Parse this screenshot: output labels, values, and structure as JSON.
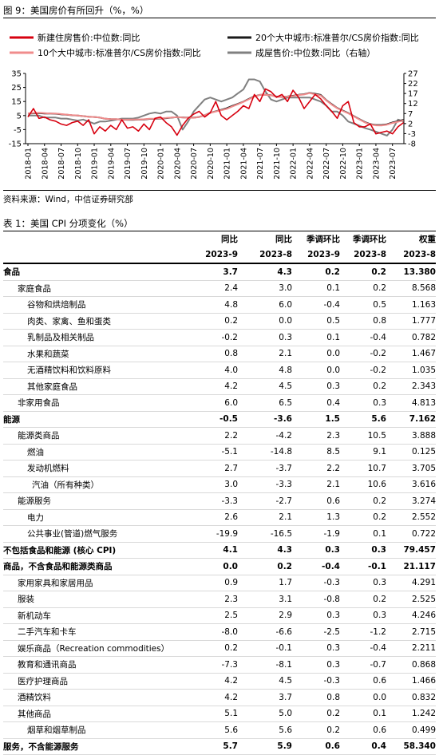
{
  "figure_title": "图 9：美国房价有所回升（%，%）",
  "chart_data": {
    "type": "line",
    "categories": [
      "2018-01",
      null,
      null,
      "2018-04",
      null,
      null,
      "2018-07",
      null,
      null,
      "2018-10",
      null,
      null,
      "2019-01",
      null,
      null,
      "2019-04",
      null,
      null,
      "2019-07",
      null,
      null,
      "2019-10",
      null,
      null,
      "2020-01",
      null,
      null,
      "2020-04",
      null,
      null,
      "2020-07",
      null,
      null,
      "2020-10",
      null,
      null,
      "2021-01",
      null,
      null,
      "2021-04",
      null,
      null,
      "2021-07",
      null,
      null,
      "2021-10",
      null,
      null,
      "2022-01",
      null,
      null,
      "2022-04",
      null,
      null,
      "2022-07",
      null,
      null,
      "2022-10",
      null,
      null,
      "2023-01",
      null,
      null,
      "2023-04",
      null,
      null,
      "2023-07",
      null,
      null
    ],
    "series": [
      {
        "name": "新建住房售价:中位数:同比",
        "color": "#d7000f",
        "values": [
          4,
          10,
          3,
          4,
          2,
          1,
          -1,
          -2,
          0,
          1,
          -2,
          2,
          -8,
          -3,
          -6,
          -2,
          -5,
          2,
          -4,
          -3,
          -6,
          -1,
          -5,
          3,
          4,
          0,
          -3,
          -9,
          -2,
          3,
          6,
          8,
          4,
          7,
          15,
          5,
          2,
          5,
          8,
          12,
          10,
          20,
          15,
          24,
          22,
          18,
          20,
          15,
          23,
          18,
          10,
          15,
          20,
          17,
          12,
          8,
          3,
          12,
          15,
          0,
          -3,
          -3,
          -1,
          -8,
          -7,
          -6,
          -8,
          -3,
          0
        ]
      },
      {
        "name": "20个大中城市:标准普尔/CS房价指数:同比",
        "color": "#1a1a1a",
        "values": [
          6.4,
          6.6,
          6.7,
          6.5,
          6.4,
          6.3,
          5.9,
          5.6,
          5.2,
          5.0,
          4.6,
          4.2,
          4.0,
          3.6,
          2.7,
          2.5,
          2.4,
          2.1,
          2.0,
          2.0,
          2.1,
          2.2,
          2.6,
          2.6,
          2.9,
          3.1,
          3.5,
          3.9,
          3.7,
          3.5,
          3.5,
          4.0,
          5.2,
          7.0,
          8.0,
          9.1,
          10.2,
          11.9,
          13.3,
          14.9,
          16.9,
          18.7,
          19.7,
          19.9,
          19.5,
          18.5,
          18.2,
          18.6,
          19.1,
          19.8,
          20.2,
          21.2,
          20.5,
          19.7,
          16.0,
          13.1,
          10.4,
          8.6,
          6.8,
          4.6,
          2.5,
          0.4,
          -1.1,
          -1.7,
          -1.7,
          -1.2,
          0.1,
          1.0,
          2.0
        ]
      },
      {
        "name": "10个大中城市:标准普尔/CS房价指数:同比",
        "color": "#f08c8c",
        "values": [
          6.6,
          6.8,
          7.0,
          6.7,
          6.5,
          6.4,
          6.1,
          5.7,
          5.3,
          5.1,
          4.6,
          4.2,
          4.0,
          3.6,
          2.8,
          2.5,
          2.5,
          2.2,
          2.1,
          2.2,
          2.2,
          2.4,
          2.7,
          2.8,
          3.1,
          3.3,
          3.6,
          3.9,
          3.6,
          3.4,
          3.4,
          4.0,
          5.2,
          6.9,
          7.9,
          8.8,
          9.8,
          11.5,
          13.0,
          14.7,
          16.6,
          18.5,
          19.7,
          19.8,
          19.4,
          18.4,
          18.1,
          18.5,
          18.8,
          19.6,
          20.0,
          21.0,
          20.1,
          19.3,
          15.8,
          12.8,
          10.2,
          8.3,
          6.6,
          4.4,
          2.3,
          0.1,
          -1.3,
          -2.0,
          -2.1,
          -1.5,
          -0.3,
          0.6,
          1.5
        ]
      },
      {
        "name": "成屋售价:中位数:同比（右轴）",
        "color": "#808080",
        "axis": "y2",
        "values": [
          6,
          6,
          6,
          5,
          5,
          5,
          4.5,
          4.5,
          4,
          3.5,
          4,
          3,
          2,
          3,
          3,
          3.5,
          4,
          4.5,
          4.5,
          4.5,
          5,
          6,
          7,
          7.5,
          7,
          8,
          8,
          6,
          -1,
          3,
          8,
          11,
          14,
          15,
          14,
          13,
          14,
          15,
          17,
          19,
          24,
          24,
          23,
          18,
          14,
          13,
          14,
          15,
          15,
          15,
          15,
          15,
          14,
          13,
          11,
          8,
          8,
          6,
          3,
          2,
          1,
          -0.2,
          -1,
          -2,
          -3,
          -4,
          -1,
          4,
          3
        ]
      }
    ],
    "ylim": [
      -15,
      35
    ],
    "yticks": [
      -15,
      -5,
      5,
      15,
      25,
      35
    ],
    "y2lim": [
      -8,
      27
    ],
    "y2ticks": [
      -8,
      -3,
      2,
      7,
      12,
      17,
      22,
      27
    ]
  },
  "source": "资料来源：Wind，中信证券研究部",
  "table_title": "表 1：美国 CPI 分项变化（%）",
  "table": {
    "header": [
      [
        "同比",
        "同比",
        "季调环比",
        "季调环比",
        "权重"
      ],
      [
        "2023-9",
        "2023-8",
        "2023-9",
        "2023-8",
        "2023-8"
      ]
    ],
    "rows": [
      [
        "食品",
        "3.7",
        "4.3",
        "0.2",
        "0.2",
        "13.380"
      ],
      [
        "家庭食品",
        "2.4",
        "3.0",
        "0.1",
        "0.2",
        "8.568"
      ],
      [
        "谷物和烘焙制品",
        "4.8",
        "6.0",
        "-0.4",
        "0.5",
        "1.163"
      ],
      [
        "肉类、家禽、鱼和蛋类",
        "0.2",
        "0.0",
        "0.5",
        "0.8",
        "1.777"
      ],
      [
        "乳制品及相关制品",
        "-0.2",
        "0.3",
        "0.1",
        "-0.4",
        "0.782"
      ],
      [
        "水果和蔬菜",
        "0.8",
        "2.1",
        "0.0",
        "-0.2",
        "1.467"
      ],
      [
        "无酒精饮料和饮料原料",
        "4.0",
        "4.8",
        "0.0",
        "-0.2",
        "1.035"
      ],
      [
        "其他家庭食品",
        "4.2",
        "4.5",
        "0.3",
        "0.2",
        "2.343"
      ],
      [
        "非家用食品",
        "6.0",
        "6.5",
        "0.4",
        "0.3",
        "4.813"
      ],
      [
        "能源",
        "-0.5",
        "-3.6",
        "1.5",
        "5.6",
        "7.162"
      ],
      [
        "能源类商品",
        "2.2",
        "-4.2",
        "2.3",
        "10.5",
        "3.888"
      ],
      [
        "燃油",
        "-5.1",
        "-14.8",
        "8.5",
        "9.1",
        "0.125"
      ],
      [
        "发动机燃料",
        "2.7",
        "-3.7",
        "2.2",
        "10.7",
        "3.705"
      ],
      [
        "汽油（所有种类）",
        "3.0",
        "-3.3",
        "2.1",
        "10.6",
        "3.616"
      ],
      [
        "能源服务",
        "-3.3",
        "-2.7",
        "0.6",
        "0.2",
        "3.274"
      ],
      [
        "电力",
        "2.6",
        "2.1",
        "1.3",
        "0.2",
        "2.552"
      ],
      [
        "公共事业(管道)燃气服务",
        "-19.9",
        "-16.5",
        "-1.9",
        "0.1",
        "0.722"
      ],
      [
        "不包括食品和能源 (核心 CPI)",
        "4.1",
        "4.3",
        "0.3",
        "0.3",
        "79.457"
      ],
      [
        "商品，不含食品和能源类商品",
        "0.0",
        "0.2",
        "-0.4",
        "-0.1",
        "21.117"
      ],
      [
        "家用家具和家居用品",
        "0.9",
        "1.7",
        "-0.3",
        "0.3",
        "4.291"
      ],
      [
        "服装",
        "2.3",
        "3.1",
        "-0.8",
        "0.2",
        "2.525"
      ],
      [
        "新机动车",
        "2.5",
        "2.9",
        "0.3",
        "0.3",
        "4.246"
      ],
      [
        "二手汽车和卡车",
        "-8.0",
        "-6.6",
        "-2.5",
        "-1.2",
        "2.715"
      ],
      [
        "娱乐商品（Recreation commodities）",
        "0.2",
        "-0.1",
        "0.3",
        "-0.4",
        "2.211"
      ],
      [
        "教育和通讯商品",
        "-7.3",
        "-8.1",
        "0.3",
        "-0.7",
        "0.868"
      ],
      [
        "医疗护理商品",
        "4.2",
        "4.5",
        "-0.3",
        "0.6",
        "1.466"
      ],
      [
        "酒精饮料",
        "4.2",
        "3.7",
        "0.8",
        "0.0",
        "0.832"
      ],
      [
        "其他商品",
        "5.1",
        "5.0",
        "0.2",
        "0.1",
        "1.242"
      ],
      [
        "烟草和烟草制品",
        "5.6",
        "5.6",
        "0.2",
        "0.6",
        "0.499"
      ],
      [
        "服务，不含能源服务",
        "5.7",
        "5.9",
        "0.6",
        "0.4",
        "58.340"
      ]
    ]
  }
}
